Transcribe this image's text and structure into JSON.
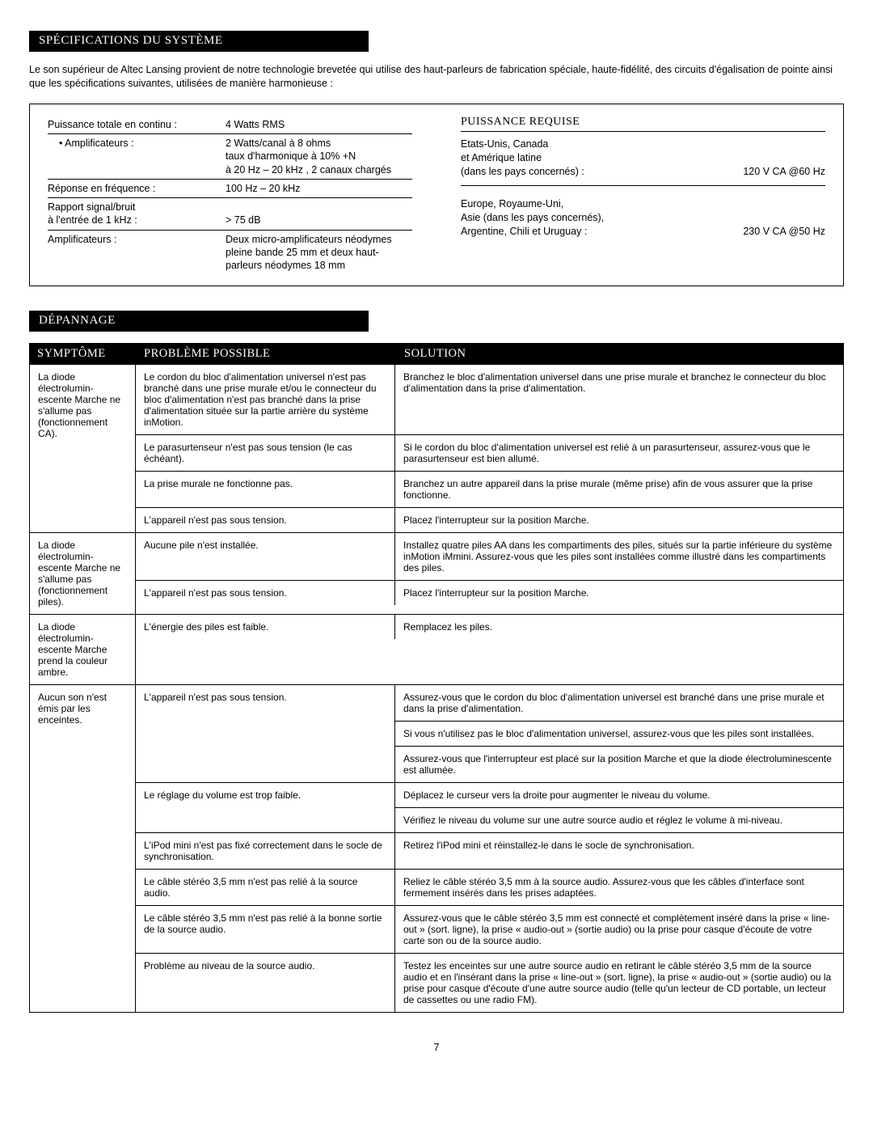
{
  "headers": {
    "specs": "SPÉCIFICATIONS DU SYSTÈME",
    "troubleshoot": "DÉPANNAGE"
  },
  "intro": "Le son supérieur de Altec Lansing provient de notre technologie brevetée qui utilise des haut-parleurs de fabrication spéciale, haute-fidélité, des circuits d'égalisation de pointe ainsi que les spécifications suivantes, utilisées de manière harmonieuse :",
  "specs": {
    "total_power_label": "Puissance totale en continu :",
    "total_power_value": "4 Watts RMS",
    "amps_sub_label": "• Amplificateurs :",
    "amps_sub_value": "2 Watts/canal à 8 ohms\ntaux d'harmonique à 10% +N\nà 20 Hz – 20 kHz , 2 canaux chargés",
    "freq_label": "Réponse en fréquence :",
    "freq_value": "100 Hz – 20 kHz",
    "snr_label": "Rapport signal/bruit\nà l'entrée de 1 kHz :",
    "snr_value": "> 75 dB",
    "drivers_label": "Amplificateurs :",
    "drivers_value": "Deux micro-amplificateurs néodymes pleine bande 25 mm et deux haut-parleurs néodymes 18 mm"
  },
  "power": {
    "header": "PUISSANCE REQUISE",
    "region1": "Etats-Unis, Canada\net Amérique latine\n(dans les pays concernés) :",
    "value1": "120 V CA @60 Hz",
    "region2": "Europe, Royaume-Uni,\nAsie (dans les pays concernés),\nArgentine, Chili et Uruguay :",
    "value2": "230 V CA @50 Hz"
  },
  "ts_headers": {
    "symptom": "SYMPTÔME",
    "problem": "PROBLÈME POSSIBLE",
    "solution": "SOLUTION"
  },
  "ts": [
    {
      "symptom": "La diode électrolumin-escente Marche ne s'allume pas (fonctionnement CA).",
      "pairs": [
        {
          "problem": "Le cordon du bloc d'alimentation universel n'est pas branché dans une prise murale et/ou le connecteur du bloc d'alimentation n'est pas branché dans la prise d'alimentation située sur la partie arrière du système inMotion.",
          "solutions": [
            "Branchez le bloc d'alimentation universel dans une prise murale et branchez le connecteur du bloc d'alimentation dans la prise d'alimentation."
          ]
        },
        {
          "problem": "Le parasurtenseur n'est pas sous tension (le cas échéant).",
          "solutions": [
            "Si le cordon du bloc d'alimentation universel est relié à un parasurtenseur, assurez-vous que le parasurtenseur est bien allumé."
          ]
        },
        {
          "problem": "La prise murale ne fonctionne pas.",
          "solutions": [
            "Branchez un autre appareil dans la prise murale (même prise) afin de vous assurer que la prise fonctionne."
          ]
        },
        {
          "problem": "L'appareil n'est pas sous tension.",
          "solutions": [
            "Placez l'interrupteur sur la position Marche."
          ]
        }
      ]
    },
    {
      "symptom": "La diode électrolumin-escente Marche ne s'allume pas (fonctionnement piles).",
      "pairs": [
        {
          "problem": "Aucune pile n'est installée.",
          "solutions": [
            "Installez quatre piles AA dans les compartiments des piles, situés sur la partie inférieure du système inMotion iMmini. Assurez-vous que les piles sont installées comme illustré dans les compartiments des piles."
          ]
        },
        {
          "problem": "L'appareil n'est pas sous tension.",
          "solutions": [
            "Placez l'interrupteur sur la position Marche."
          ]
        }
      ]
    },
    {
      "symptom": "La diode électrolumin-escente Marche prend la couleur ambre.",
      "pairs": [
        {
          "problem": "L'énergie des piles est faible.",
          "solutions": [
            "Remplacez les piles."
          ]
        }
      ]
    },
    {
      "symptom": "Aucun son n'est émis par les enceintes.",
      "pairs": [
        {
          "problem": "L'appareil n'est pas sous tension.",
          "solutions": [
            "Assurez-vous que le cordon du bloc d'alimentation universel est branché dans une prise murale et dans la prise d'alimentation.",
            "Si vous n'utilisez pas le bloc d'alimentation universel, assurez-vous que les piles sont installées.",
            "Assurez-vous que l'interrupteur est placé sur la position Marche et que la diode électroluminescente est allumée."
          ]
        },
        {
          "problem": "Le réglage du volume est trop faible.",
          "solutions": [
            "Déplacez le curseur vers la droite pour augmenter le niveau du volume.",
            "Vérifiez le niveau du volume sur une autre source audio et réglez le volume à mi-niveau."
          ]
        },
        {
          "problem": "L'iPod mini n'est pas fixé correctement dans le socle de synchronisation.",
          "solutions": [
            "Retirez l'iPod mini et réinstallez-le dans le socle de synchronisation."
          ]
        },
        {
          "problem": "Le câble stéréo 3,5 mm n'est pas relié à la source audio.",
          "solutions": [
            "Reliez le câble stéréo 3,5 mm à la source audio. Assurez-vous que les câbles d'interface sont fermement insérés dans les prises adaptées."
          ]
        },
        {
          "problem": "Le câble stéréo 3,5 mm n'est pas relié à la bonne sortie de la source audio.",
          "solutions": [
            "Assurez-vous que le câble stéréo 3,5 mm est connecté et complètement inséré dans la prise « line-out » (sort. ligne), la prise « audio-out » (sortie audio) ou la prise pour casque d'écoute de votre carte son ou de la source audio."
          ]
        },
        {
          "problem": "Problème au niveau de la source audio.",
          "solutions": [
            "Testez les enceintes sur une autre source audio en retirant le câble stéréo 3,5 mm de la source audio et en l'insérant dans la prise « line-out » (sort. ligne), la prise « audio-out » (sortie audio) ou la prise pour casque d'écoute d'une autre source audio (telle qu'un lecteur de CD portable, un lecteur de cassettes ou une radio FM)."
          ]
        }
      ]
    }
  ],
  "page_number": "7"
}
